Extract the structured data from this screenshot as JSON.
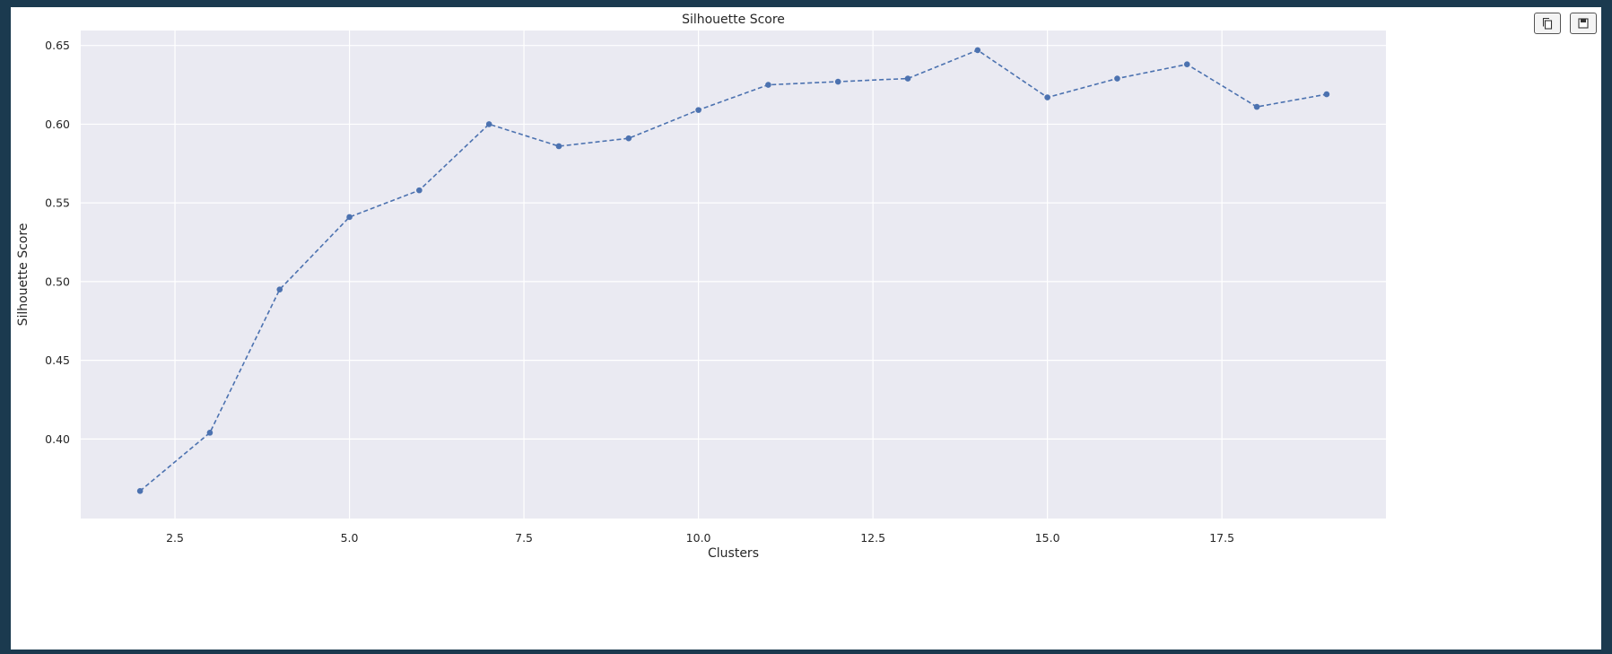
{
  "toolbar": {
    "copy_icon": "copy-icon",
    "save_icon": "save-icon"
  },
  "chart_data": {
    "type": "line",
    "title": "Silhouette Score",
    "xlabel": "Clusters",
    "ylabel": "Silhouette Score",
    "x": [
      2,
      3,
      4,
      5,
      6,
      7,
      8,
      9,
      10,
      11,
      12,
      13,
      14,
      15,
      16,
      17,
      18,
      19
    ],
    "series": [
      {
        "values": [
          0.367,
          0.404,
          0.495,
          0.541,
          0.558,
          0.6,
          0.586,
          0.591,
          0.609,
          0.625,
          0.627,
          0.629,
          0.647,
          0.617,
          0.629,
          0.638,
          0.611,
          0.619
        ],
        "color": "#4c72b0",
        "line_style": "dashed",
        "marker": "circle"
      }
    ],
    "xlim": [
      1.15,
      19.85
    ],
    "ylim": [
      0.3495,
      0.6595
    ],
    "xticks": [
      2.5,
      5.0,
      7.5,
      10.0,
      12.5,
      15.0,
      17.5
    ],
    "xtick_labels": [
      "2.5",
      "5.0",
      "7.5",
      "10.0",
      "12.5",
      "15.0",
      "17.5"
    ],
    "yticks": [
      0.4,
      0.45,
      0.5,
      0.55,
      0.6,
      0.65
    ],
    "ytick_labels": [
      "0.40",
      "0.45",
      "0.50",
      "0.55",
      "0.60",
      "0.65"
    ],
    "grid": true,
    "plot_background": "#eaeaf2",
    "grid_color": "#ffffff"
  }
}
